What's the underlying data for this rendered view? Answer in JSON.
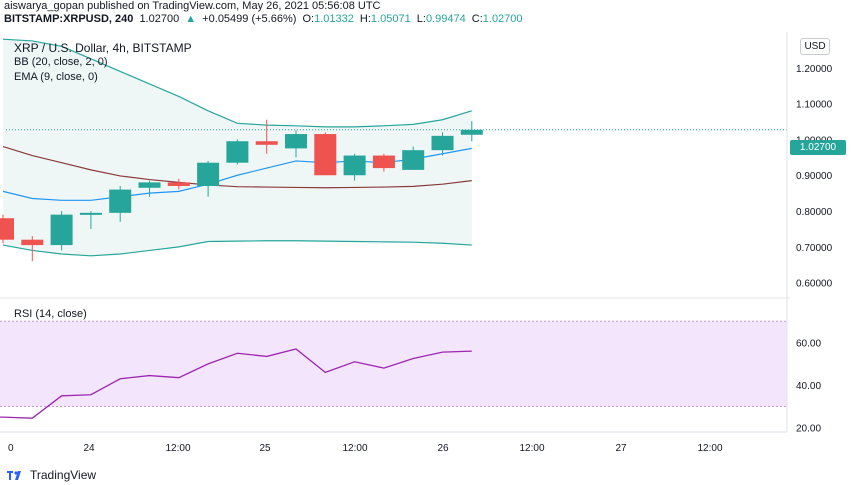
{
  "header": {
    "line1": "aiswarya_gopan published on TradingView.com, May 26, 2021 05:56:08 UTC",
    "symbol": "BITSTAMP:XRPUSD, 240",
    "last": "1.02700",
    "change_arrow": "▲",
    "change": "+0.05499 (+5.66%)",
    "o_label": "O:",
    "o_value": "1.01332",
    "h_label": "H:",
    "h_value": "1.05071",
    "l_label": "L:",
    "l_value": "0.99474",
    "c_label": "C:",
    "c_value": "1.02700"
  },
  "legend": {
    "title": "XRP / U.S. Dollar, 4h, BITSTAMP",
    "bb": "BB (20, close, 2, 0)",
    "ema": "EMA (9, close, 0)",
    "rsi": "RSI (14, close)"
  },
  "currency_badge": "USD",
  "last_price_label": "1.02700",
  "footer": {
    "logo_text": "TradingView",
    "logo_icon": "tradingview-logo-icon"
  },
  "colors": {
    "up": "#26a69a",
    "down": "#ef5350",
    "bb_band": "#26a69a",
    "bb_fill": "#eef7f6",
    "ema": "#2196f3",
    "basis": "#8b3a3a",
    "rsi_line": "#9c27b0",
    "rsi_fill": "#f3e5fb"
  },
  "chart_data": [
    {
      "type": "candlestick",
      "title": "XRP / U.S. Dollar, 4h, BITSTAMP",
      "x_tick_labels": [
        "0",
        "24",
        "12:00",
        "25",
        "12:00",
        "26",
        "12:00",
        "27",
        "12:00"
      ],
      "y_tick_labels": [
        "0.60000",
        "0.70000",
        "0.80000",
        "0.90000",
        "1.00000",
        "1.10000",
        "1.20000"
      ],
      "ylim": [
        0.56,
        1.3
      ],
      "candles": [
        {
          "o": 0.78,
          "h": 0.79,
          "l": 0.71,
          "c": 0.72
        },
        {
          "o": 0.72,
          "h": 0.73,
          "l": 0.66,
          "c": 0.705
        },
        {
          "o": 0.705,
          "h": 0.8,
          "l": 0.69,
          "c": 0.79
        },
        {
          "o": 0.79,
          "h": 0.8,
          "l": 0.75,
          "c": 0.795
        },
        {
          "o": 0.795,
          "h": 0.87,
          "l": 0.77,
          "c": 0.86
        },
        {
          "o": 0.865,
          "h": 0.885,
          "l": 0.84,
          "c": 0.88
        },
        {
          "o": 0.88,
          "h": 0.89,
          "l": 0.86,
          "c": 0.87
        },
        {
          "o": 0.87,
          "h": 0.94,
          "l": 0.84,
          "c": 0.935
        },
        {
          "o": 0.935,
          "h": 1.0,
          "l": 0.93,
          "c": 0.995
        },
        {
          "o": 0.995,
          "h": 1.055,
          "l": 0.96,
          "c": 0.985
        },
        {
          "o": 0.975,
          "h": 1.025,
          "l": 0.95,
          "c": 1.015
        },
        {
          "o": 1.015,
          "h": 1.02,
          "l": 0.9,
          "c": 0.9
        },
        {
          "o": 0.9,
          "h": 0.96,
          "l": 0.885,
          "c": 0.955
        },
        {
          "o": 0.955,
          "h": 0.96,
          "l": 0.91,
          "c": 0.92
        },
        {
          "o": 0.915,
          "h": 0.98,
          "l": 0.915,
          "c": 0.97
        },
        {
          "o": 0.97,
          "h": 1.02,
          "l": 0.955,
          "c": 1.01
        },
        {
          "o": 1.013,
          "h": 1.051,
          "l": 0.995,
          "c": 1.027
        }
      ],
      "series": [
        {
          "key": "bb_upper",
          "values": [
            1.28,
            1.275,
            1.26,
            1.225,
            1.19,
            1.155,
            1.12,
            1.08,
            1.045,
            1.04,
            1.038,
            1.035,
            1.035,
            1.038,
            1.042,
            1.055,
            1.08
          ]
        },
        {
          "key": "bb_lower",
          "values": [
            0.705,
            0.69,
            0.68,
            0.675,
            0.68,
            0.69,
            0.7,
            0.715,
            0.716,
            0.717,
            0.717,
            0.716,
            0.715,
            0.714,
            0.713,
            0.71,
            0.705
          ]
        },
        {
          "key": "bb_basis",
          "values": [
            0.98,
            0.955,
            0.935,
            0.915,
            0.898,
            0.888,
            0.88,
            0.873,
            0.868,
            0.867,
            0.866,
            0.865,
            0.866,
            0.867,
            0.869,
            0.875,
            0.885
          ]
        },
        {
          "key": "ema",
          "values": [
            0.855,
            0.835,
            0.83,
            0.83,
            0.84,
            0.85,
            0.855,
            0.875,
            0.9,
            0.92,
            0.94,
            0.935,
            0.94,
            0.935,
            0.945,
            0.96,
            0.975
          ]
        }
      ]
    },
    {
      "type": "line",
      "title": "RSI (14, close)",
      "y_tick_labels": [
        "20.00",
        "40.00",
        "60.00"
      ],
      "ylim": [
        18,
        80
      ],
      "band": [
        30,
        70
      ],
      "values": [
        25,
        24.5,
        35,
        35.5,
        43,
        44.5,
        43.5,
        50,
        55,
        53.5,
        57,
        46,
        51,
        48,
        52.5,
        55.5,
        56
      ]
    }
  ]
}
